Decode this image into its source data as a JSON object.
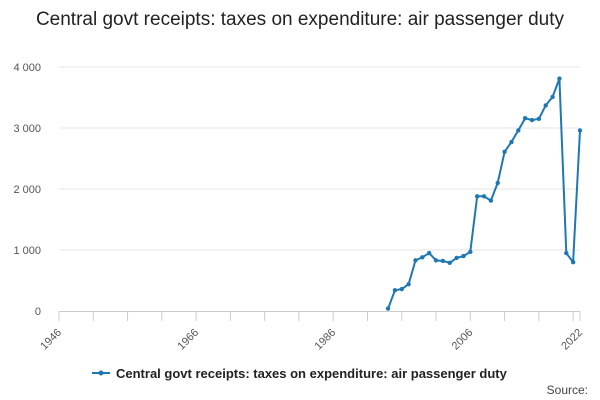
{
  "chart_data": {
    "type": "line",
    "title": "Central govt receipts: taxes on expenditure: air passenger duty",
    "xlabel": "",
    "ylabel": "",
    "xlim": [
      1946,
      2022
    ],
    "ylim": [
      0,
      4000
    ],
    "x_ticks": [
      1946,
      1966,
      1986,
      2006,
      2022
    ],
    "x_tick_labels": [
      "1946",
      "1966",
      "1986",
      "2006",
      "2022"
    ],
    "y_ticks": [
      0,
      1000,
      2000,
      3000,
      4000
    ],
    "y_tick_labels": [
      "0",
      "1 000",
      "2 000",
      "3 000",
      "4 000"
    ],
    "grid": true,
    "legend_position": "bottom",
    "series": [
      {
        "name": "Central govt receipts: taxes on expenditure: air passenger duty",
        "color": "#1f78b4",
        "x": [
          1994,
          1995,
          1996,
          1997,
          1998,
          1999,
          2000,
          2001,
          2002,
          2003,
          2004,
          2005,
          2006,
          2007,
          2008,
          2009,
          2010,
          2011,
          2012,
          2013,
          2014,
          2015,
          2016,
          2017,
          2018,
          2019,
          2020,
          2021,
          2022
        ],
        "values": [
          40,
          340,
          360,
          440,
          830,
          880,
          950,
          830,
          820,
          790,
          870,
          900,
          970,
          1880,
          1880,
          1810,
          2100,
          2610,
          2770,
          2960,
          3160,
          3130,
          3150,
          3370,
          3510,
          3810,
          950,
          800,
          2960
        ]
      }
    ]
  },
  "footer": {
    "source_label": "Source:"
  }
}
